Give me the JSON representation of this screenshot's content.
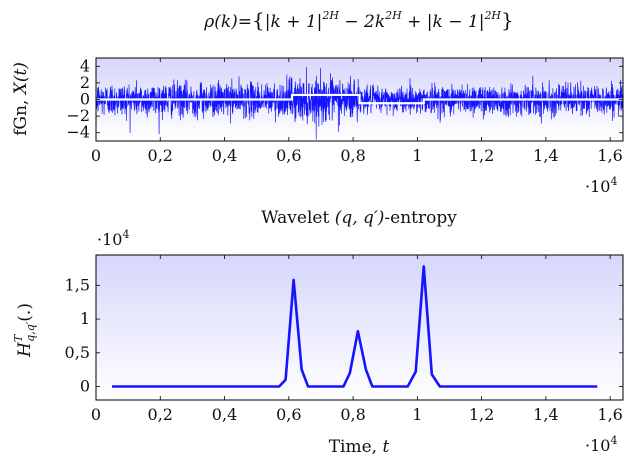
{
  "chart_data": [
    {
      "type": "line",
      "title": "ρ(k)={|k+1|^2H − 2k^2H + |k−1|^2H}",
      "title_parts": {
        "lhs": "ρ(k)=",
        "lbrace": "{",
        "t1": "|k + 1|",
        "e1": "2H",
        "t2": " − 2k",
        "e2": "2H",
        "t3": " + |k − 1|",
        "e3": "2H",
        "rbrace": "}"
      },
      "ylabel": "fGn, X(t)",
      "ylabel_parts": {
        "text": "fGn, ",
        "var": "X(t)"
      },
      "xlabel": "",
      "x_multiplier": "·10^4",
      "x_multiplier_parts": {
        "base": "·10",
        "exp": "4"
      },
      "xlim": [
        0,
        1.64
      ],
      "ylim": [
        -5,
        5
      ],
      "xticks": [
        0,
        0.2,
        0.4,
        0.6,
        0.8,
        1.0,
        1.2,
        1.4,
        1.6
      ],
      "xtick_labels": [
        "0",
        "0,2",
        "0,4",
        "0,6",
        "0,8",
        "1",
        "1,2",
        "1,4",
        "1,6"
      ],
      "yticks": [
        -4,
        -2,
        0,
        2,
        4
      ],
      "ytick_labels": [
        "−4",
        "−2",
        "0",
        "2",
        "4"
      ],
      "noise": {
        "n_samples": 16384,
        "base_std": 1.0,
        "segment_std": [
          {
            "x0": 0.0,
            "x1": 0.6,
            "std": 1.0
          },
          {
            "x0": 0.6,
            "x1": 0.82,
            "std": 1.3
          },
          {
            "x0": 0.82,
            "x1": 1.02,
            "std": 0.75
          },
          {
            "x0": 1.02,
            "x1": 1.64,
            "std": 0.9
          }
        ]
      },
      "hurst_overlay": {
        "x": [
          0,
          0.61,
          0.61,
          0.82,
          0.82,
          1.02,
          1.02,
          1.64
        ],
        "y": [
          0,
          0,
          0.55,
          0.55,
          -0.45,
          -0.45,
          0,
          0
        ]
      },
      "colors": {
        "line": "#1414ff",
        "overlay": "#ffffff"
      }
    },
    {
      "type": "line",
      "title": "Wavelet (q,q′)-entropy",
      "title_parts": {
        "text": "Wavelet ",
        "math": "(q, q′)",
        "suffix": "-entropy"
      },
      "ylabel": "H^T_{q,q′}(.)",
      "ylabel_parts": {
        "base": "H",
        "sup": "T",
        "sub": "q,q′",
        "arg": "(.)"
      },
      "xlabel": "Time, t",
      "xlabel_parts": {
        "text": "Time, ",
        "var": "t"
      },
      "x_multiplier": "·10^4",
      "x_multiplier_parts": {
        "base": "·10",
        "exp": "4"
      },
      "y_multiplier": "·10^4",
      "y_multiplier_parts": {
        "base": "·10",
        "exp": "4"
      },
      "xlim": [
        0,
        1.64
      ],
      "ylim": [
        -0.2,
        1.95
      ],
      "xticks": [
        0,
        0.2,
        0.4,
        0.6,
        0.8,
        1.0,
        1.2,
        1.4,
        1.6
      ],
      "xtick_labels": [
        "0",
        "0,2",
        "0,4",
        "0,6",
        "0,8",
        "1",
        "1,2",
        "1,4",
        "1,6"
      ],
      "yticks": [
        0,
        0.5,
        1.0,
        1.5
      ],
      "ytick_labels": [
        "0",
        "0,5",
        "1",
        "1,5"
      ],
      "series": [
        {
          "name": "entropy",
          "x": [
            0.05,
            0.57,
            0.59,
            0.615,
            0.64,
            0.66,
            0.77,
            0.79,
            0.815,
            0.84,
            0.86,
            0.97,
            0.995,
            1.02,
            1.045,
            1.07,
            1.56
          ],
          "y": [
            0,
            0,
            0.1,
            1.58,
            0.25,
            0,
            0,
            0.2,
            0.82,
            0.25,
            0,
            0,
            0.22,
            1.78,
            0.18,
            0,
            0
          ]
        }
      ],
      "colors": {
        "line": "#1414ff"
      }
    }
  ]
}
